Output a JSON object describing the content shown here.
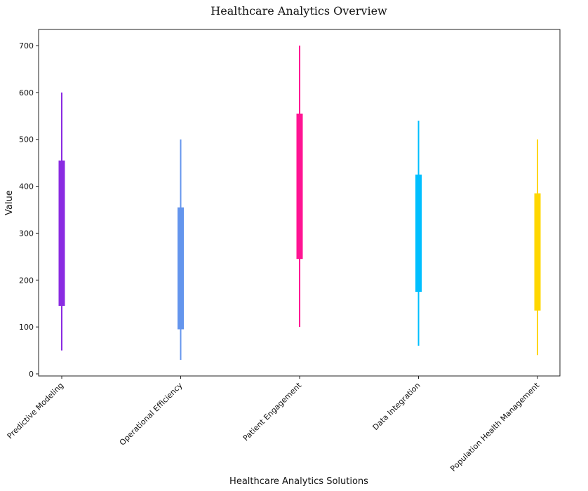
{
  "chart_data": {
    "type": "range",
    "title": "Healthcare Analytics Overview",
    "xlabel": "Healthcare Analytics Solutions",
    "ylabel": "Value",
    "ylim": [
      0,
      700
    ],
    "yticks": [
      0,
      100,
      200,
      300,
      400,
      500,
      600,
      700
    ],
    "grid": false,
    "categories": [
      "Predictive Modeling",
      "Operational Efficiency",
      "Patient Engagement",
      "Data Integration",
      "Population Health Management"
    ],
    "series": [
      {
        "min": 50,
        "q1": 145,
        "q3": 455,
        "max": 600,
        "color": "#8A2BE2"
      },
      {
        "min": 30,
        "q1": 95,
        "q3": 355,
        "max": 500,
        "color": "#6495ED"
      },
      {
        "min": 100,
        "q1": 245,
        "q3": 555,
        "max": 700,
        "color": "#FF1493"
      },
      {
        "min": 60,
        "q1": 175,
        "q3": 425,
        "max": 540,
        "color": "#00BFFF"
      },
      {
        "min": 40,
        "q1": 135,
        "q3": 385,
        "max": 500,
        "color": "#FFD700"
      }
    ]
  }
}
